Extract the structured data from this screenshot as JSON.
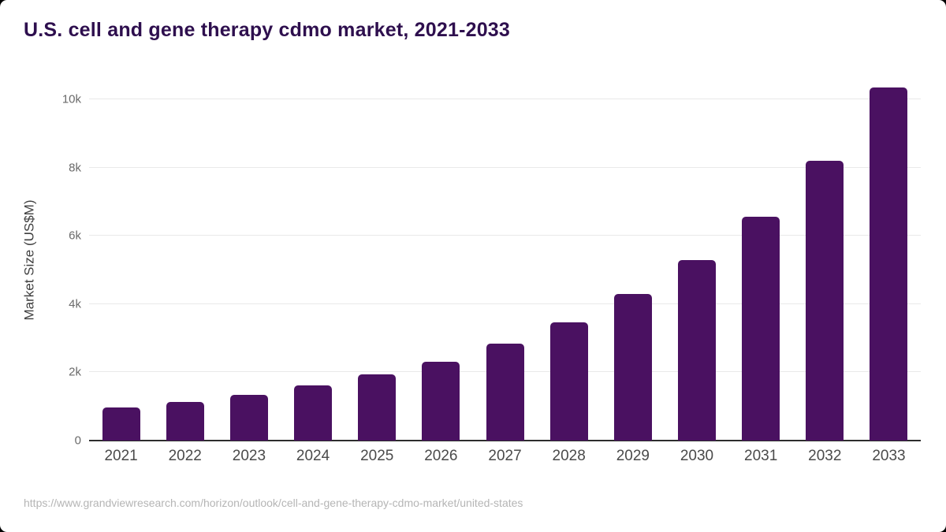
{
  "page": {
    "title": "U.S. cell and gene therapy cdmo market, 2021-2033",
    "source_url": "https://www.grandviewresearch.com/horizon/outlook/cell-and-gene-therapy-cdmo-market/united-states"
  },
  "chart_data": {
    "type": "bar",
    "title": "U.S. cell and gene therapy cdmo market, 2021-2033",
    "categories": [
      "2021",
      "2022",
      "2023",
      "2024",
      "2025",
      "2026",
      "2027",
      "2028",
      "2029",
      "2030",
      "2031",
      "2032",
      "2033"
    ],
    "values": [
      970,
      1130,
      1340,
      1610,
      1950,
      2320,
      2840,
      3470,
      4300,
      5300,
      6560,
      8200,
      10350
    ],
    "xlabel": "",
    "ylabel": "Market Size (US$M)",
    "ylim": [
      0,
      10600
    ],
    "yticks": [
      {
        "value": 0,
        "label": "0"
      },
      {
        "value": 2000,
        "label": "2k"
      },
      {
        "value": 4000,
        "label": "4k"
      },
      {
        "value": 6000,
        "label": "6k"
      },
      {
        "value": 8000,
        "label": "8k"
      },
      {
        "value": 10000,
        "label": "10k"
      }
    ],
    "grid": true,
    "legend_position": "none",
    "bar_color": "#4a1161"
  },
  "colors": {
    "background": "#ffffff",
    "title": "#2e0f4e",
    "bar": "#4a1161",
    "gridline": "#e9e9e9",
    "axis_line": "#2d2d2d",
    "y_tick_label": "#6a6a6a",
    "x_tick_label": "#4a4a4a",
    "y_axis_title": "#3f3f3f",
    "source_url": "#b5b5b5"
  }
}
